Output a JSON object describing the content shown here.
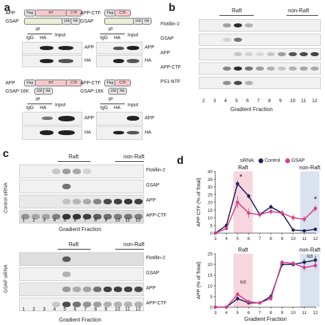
{
  "letters": {
    "a": "a",
    "b": "b",
    "c": "c",
    "d": "d"
  },
  "panel_a": {
    "q1": {
      "row1": "APP",
      "row2": "GSAP",
      "flag": "Flag",
      "nt": "NT",
      "ctf": "CTF",
      "tag16k": "16K",
      "ha": "HA",
      "ip": "IP",
      "igg": "IgG",
      "ha_lane": "HA",
      "input": "Input",
      "blot1": "APP",
      "blot2": "HA"
    },
    "q2": {
      "row1": "APP-CTF",
      "row2": "GSAP",
      "flag": "Flag",
      "ctf": "CTF",
      "tag16k": "16K",
      "ha": "HA",
      "ip": "IP",
      "igg": "IgG",
      "ha_lane": "HA",
      "input": "Input",
      "blot1": "APP",
      "blot2": "HA"
    },
    "q3": {
      "row1": "APP",
      "row2": "GSAP-16K",
      "flag": "Flag",
      "nt": "NT",
      "ctf": "CTF",
      "tag16k": "16K",
      "ha": "HA",
      "ip": "IP",
      "igg": "IgG",
      "ha_lane": "HA",
      "input": "Input",
      "blot1": "APP",
      "blot2": "HA"
    },
    "q4": {
      "row1": "APP-CTF",
      "row2": "GSAP-16K",
      "flag": "Flag",
      "ctf": "CTF",
      "tag16k": "16K",
      "ha": "HA",
      "ip": "IP",
      "igg": "IgG",
      "ha_lane": "HA",
      "input": "Input",
      "blot1": "APP",
      "blot2": "HA"
    }
  },
  "panel_b": {
    "raft": "Raft",
    "nonraft": "non-Raft",
    "rows": [
      "Flotillin-2",
      "GSAP",
      "APP",
      "APP-CTF",
      "PS1-NTF"
    ],
    "lanes": [
      "2",
      "3",
      "4",
      "5",
      "6",
      "7",
      "8",
      "9",
      "10",
      "11",
      "12"
    ],
    "xlabel": "Gradient Fraction"
  },
  "panel_c": {
    "control": {
      "side": "Control siRNA",
      "raft": "Raft",
      "nonraft": "non-Raft",
      "rows": [
        "Flotillin-2",
        "GSAP",
        "APP",
        "APP-CTF"
      ],
      "lanes": [
        "1",
        "2",
        "3",
        "4",
        "5",
        "6",
        "7",
        "8",
        "9",
        "10",
        "11",
        "12"
      ],
      "xlabel": "Gradient Fraction"
    },
    "gsap": {
      "side": "GSAP siRNA",
      "raft": "Raft",
      "nonraft": "non-Raft",
      "rows": [
        "Flotillin-2",
        "GSAP",
        "APP",
        "APP-CTF"
      ],
      "lanes": [
        "1",
        "2",
        "3",
        "4",
        "5",
        "6",
        "7",
        "8",
        "9",
        "10",
        "11",
        "12"
      ],
      "xlabel": "Gradient Fraction"
    }
  },
  "colors": {
    "control": "#1f1f5e",
    "gsap": "#d63f8c",
    "raft_shade": "#f7d6de",
    "nonraft_shade": "#d9e2ee"
  },
  "legend": {
    "title": "siRNA:",
    "control": "Control",
    "gsap": "GSAP"
  },
  "chart_data": [
    {
      "type": "line",
      "ylabel": "APP CTF (% of Total)",
      "xlabel": "",
      "x": [
        3,
        4,
        5,
        6,
        7,
        8,
        9,
        10,
        11,
        12
      ],
      "xlim": [
        3,
        12
      ],
      "ylim": [
        0,
        40
      ],
      "yticks": [
        0,
        5,
        10,
        15,
        20,
        25,
        30,
        35,
        40
      ],
      "regions": [
        {
          "label": "Raft",
          "from": 5,
          "to": 6
        },
        {
          "label": "non-Raft",
          "from": 11,
          "to": 12
        }
      ],
      "annotations": [
        {
          "text": "*",
          "x": 5.3,
          "y": 35
        },
        {
          "text": "*",
          "x": 12,
          "y": 20.5
        }
      ],
      "series": [
        {
          "name": "Control",
          "values": [
            0,
            5,
            32,
            24,
            12,
            17,
            13,
            2,
            1.5,
            2.5
          ],
          "err": [
            0.5,
            1,
            2,
            1.5,
            1,
            1.5,
            1.5,
            0.5,
            0.5,
            0.5
          ]
        },
        {
          "name": "GSAP",
          "values": [
            0,
            3,
            20,
            13,
            12,
            14,
            13,
            10,
            9,
            16
          ],
          "err": [
            0.5,
            1,
            4,
            3,
            2,
            2,
            2,
            2,
            2,
            2
          ]
        }
      ]
    },
    {
      "type": "line",
      "ylabel": "APP (% of Total)",
      "xlabel": "Gradient Fraction",
      "x": [
        3,
        4,
        5,
        6,
        7,
        8,
        9,
        10,
        11,
        12
      ],
      "xlim": [
        3,
        12
      ],
      "ylim": [
        0,
        25
      ],
      "yticks": [
        0,
        5,
        10,
        15,
        20,
        25
      ],
      "regions": [
        {
          "label": "Raft",
          "from": 5,
          "to": 6
        },
        {
          "label": "non-Raft",
          "from": 11,
          "to": 12
        }
      ],
      "annotations": [
        {
          "text": "NS",
          "x": 5.5,
          "y": 11
        },
        {
          "text": "NS",
          "x": 11.5,
          "y": 23
        }
      ],
      "series": [
        {
          "name": "Control",
          "values": [
            0,
            0,
            4,
            2,
            2,
            5,
            20,
            20,
            21,
            22
          ],
          "err": [
            0.2,
            0.2,
            1,
            0.5,
            0.5,
            1,
            1,
            1,
            1.5,
            2
          ]
        },
        {
          "name": "GSAP",
          "values": [
            0,
            0,
            6,
            2.5,
            2,
            4,
            21,
            20.5,
            18.5,
            19.5
          ],
          "err": [
            0.2,
            0.2,
            1,
            0.5,
            0.5,
            1,
            1,
            1,
            1.5,
            1.5
          ]
        }
      ]
    }
  ]
}
